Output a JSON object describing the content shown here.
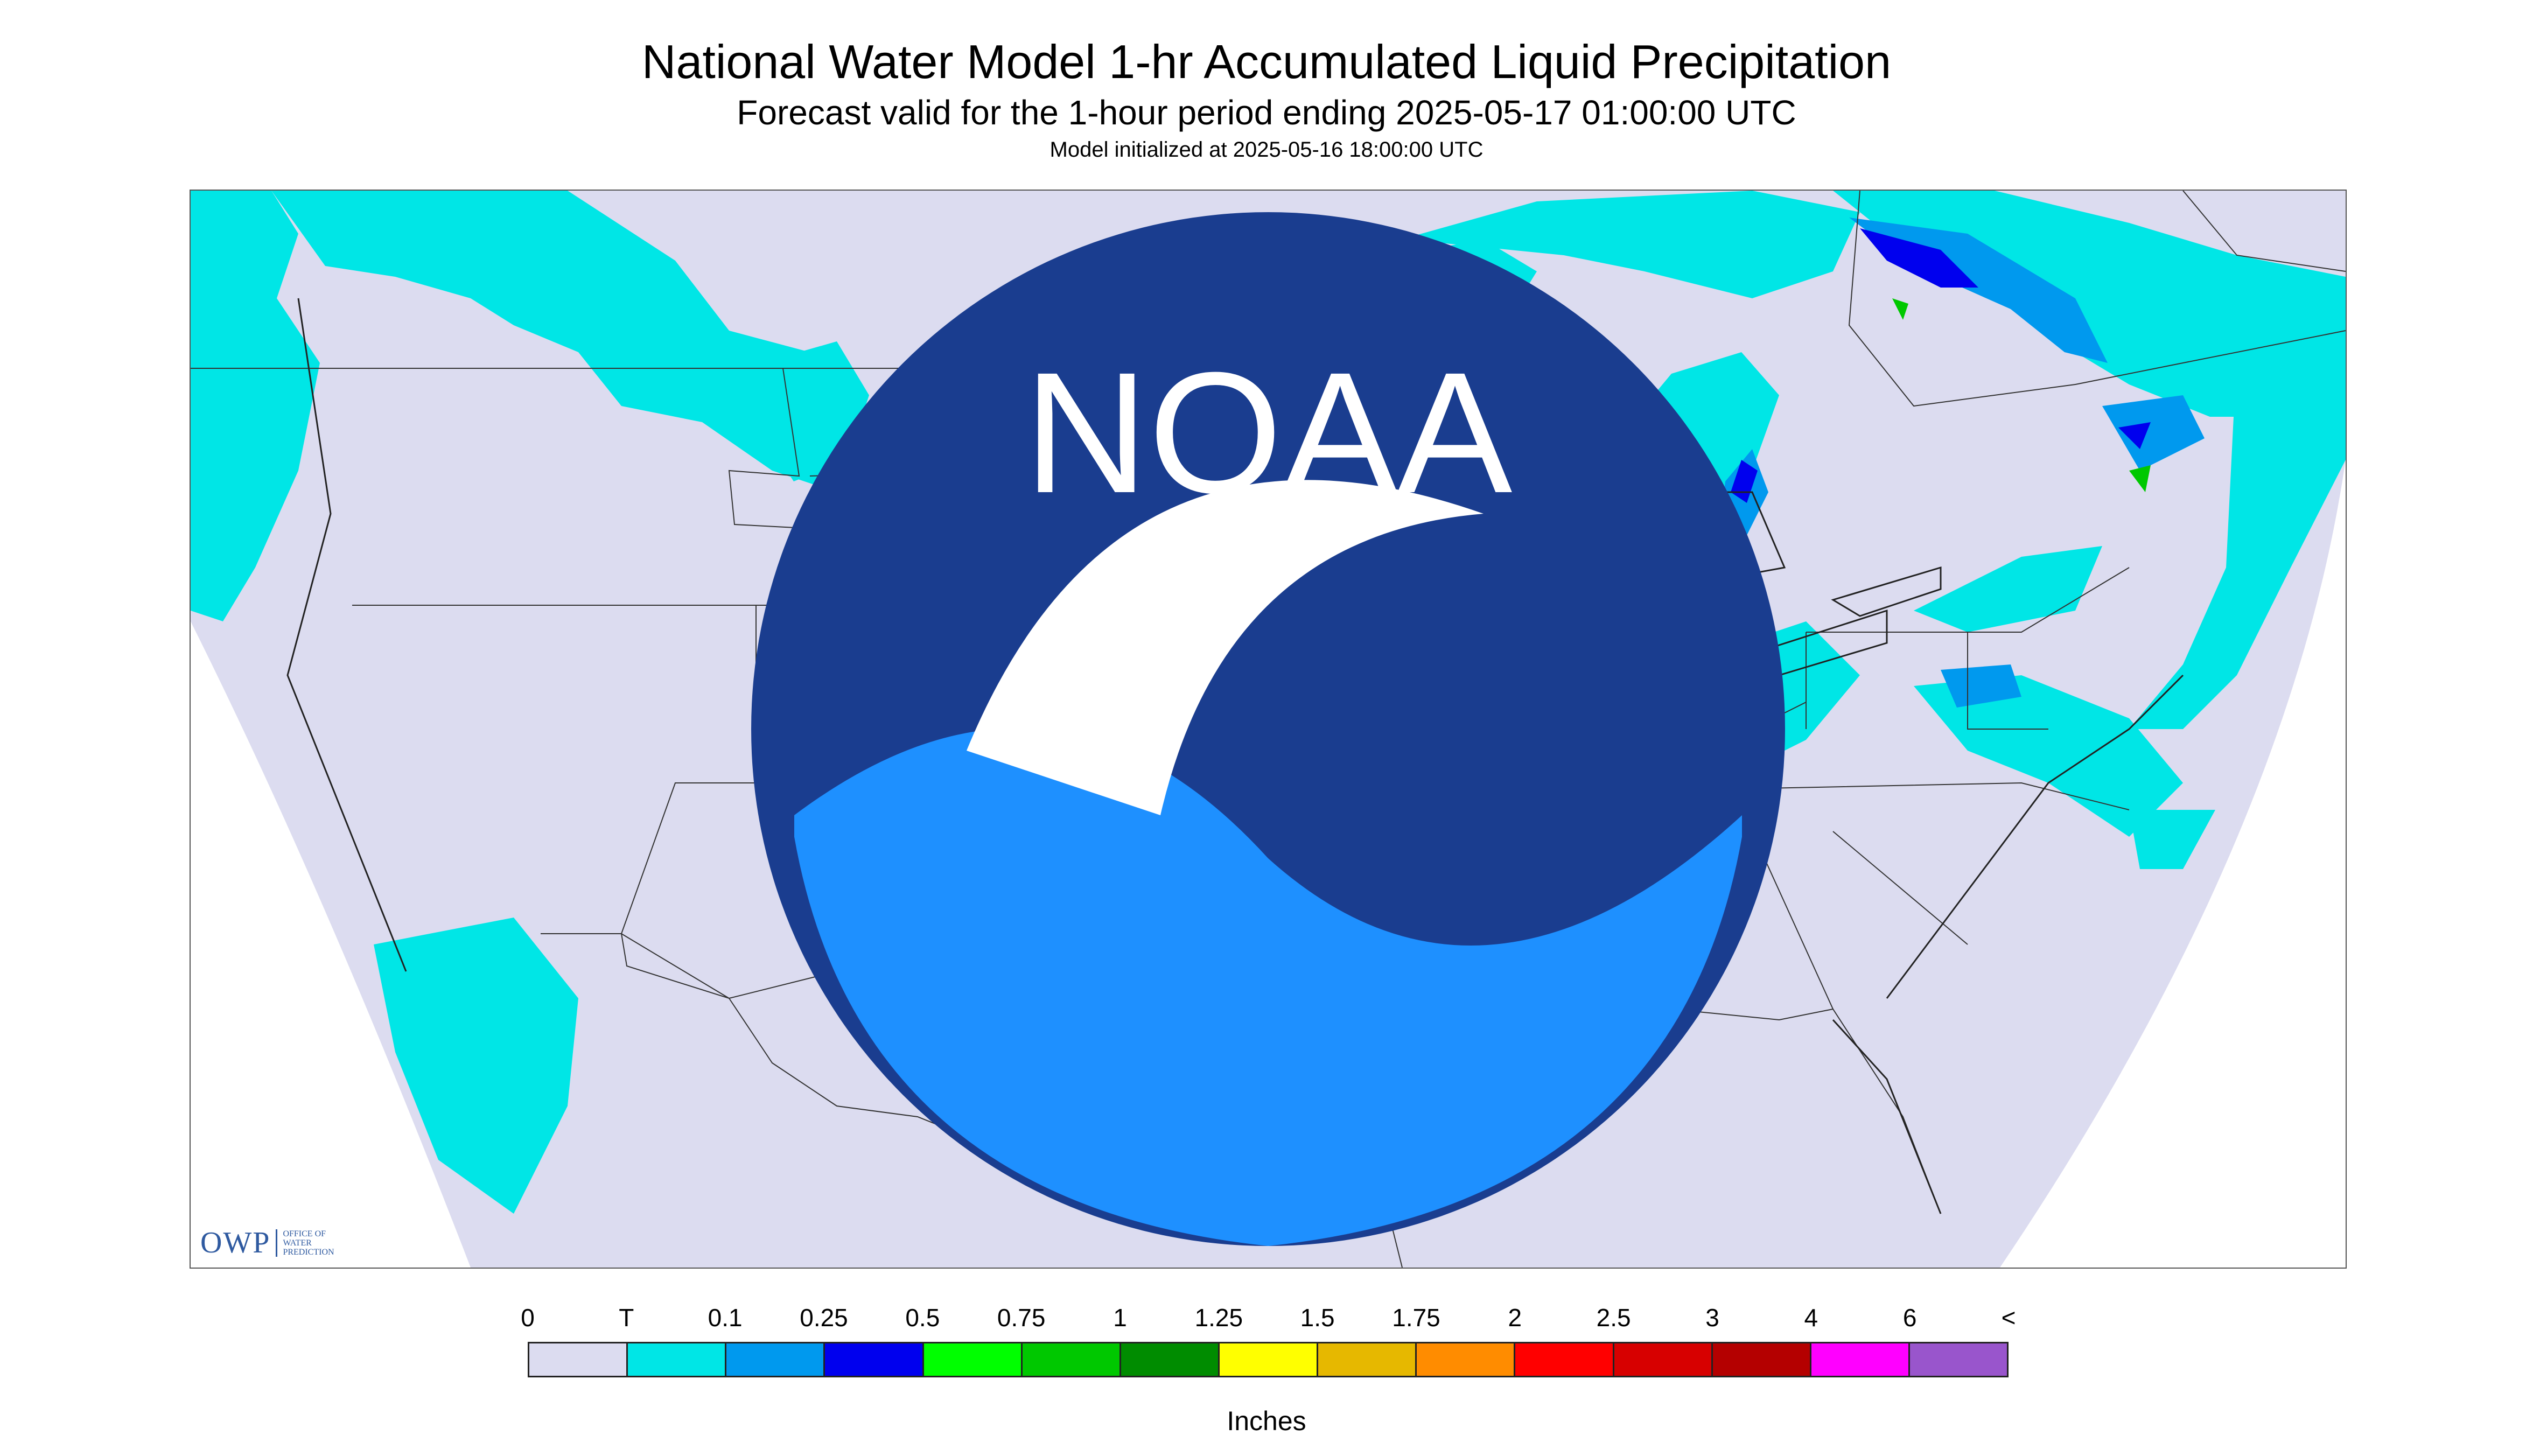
{
  "header": {
    "title": "National Water Model 1-hr Accumulated Liquid Precipitation",
    "subtitle": "Forecast valid for the 1-hour period ending 2025-05-17 01:00:00 UTC",
    "init": "Model initialized at 2025-05-16 18:00:00 UTC"
  },
  "logos": {
    "owp_main": "OWP",
    "owp_sub_lines": [
      "OFFICE OF",
      "WATER",
      "PREDICTION"
    ],
    "noaa_label": "NOAA"
  },
  "legend": {
    "labels": [
      "0",
      "T",
      "0.1",
      "0.25",
      "0.5",
      "0.75",
      "1",
      "1.25",
      "1.5",
      "1.75",
      "2",
      "2.5",
      "3",
      "4",
      "6",
      "<"
    ],
    "colors": [
      "#dcdcf0",
      "#00e6e6",
      "#0099ee",
      "#0000ee",
      "#00ff00",
      "#00c800",
      "#008c00",
      "#ffff00",
      "#e6b800",
      "#ff8c00",
      "#ff0000",
      "#d70000",
      "#b40000",
      "#ff00ff",
      "#9955cc"
    ],
    "units": "Inches"
  },
  "map": {
    "background_color": "#dcdcf0",
    "border_color": "#333333"
  }
}
